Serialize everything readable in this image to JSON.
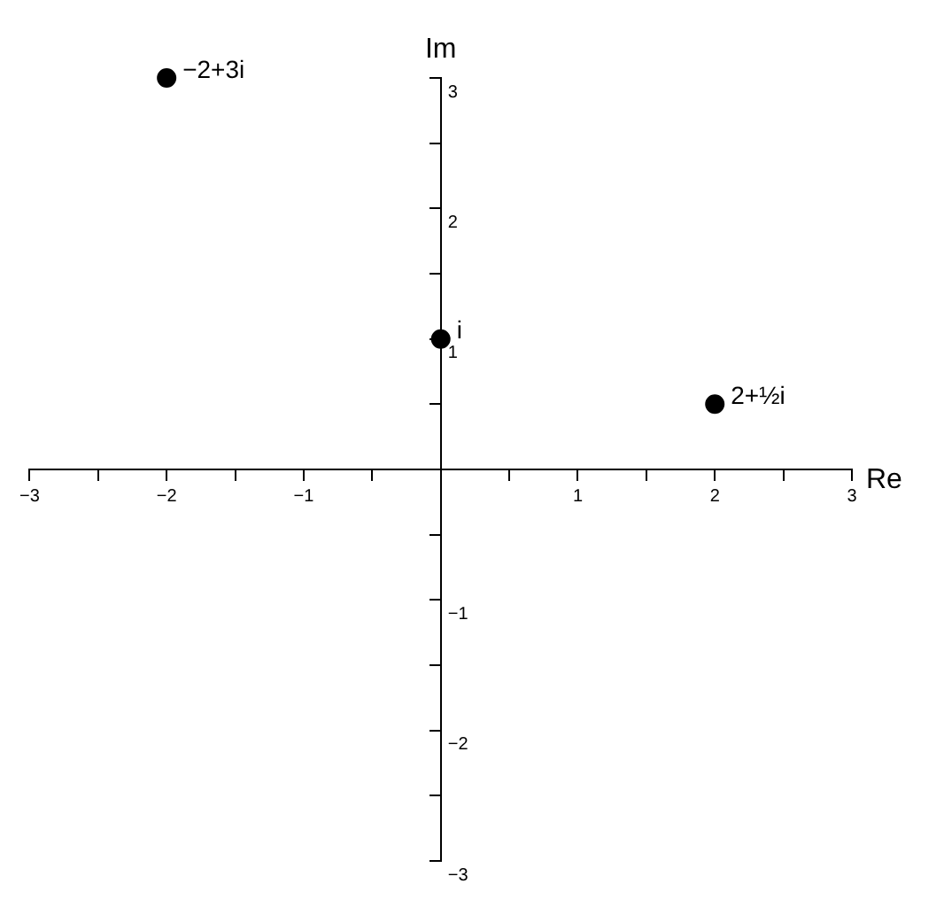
{
  "chart_data": {
    "type": "scatter",
    "xlabel": "Re",
    "ylabel": "Im",
    "x": [
      -2,
      0,
      2
    ],
    "values": [
      3,
      1,
      0.5
    ],
    "color": "#000000",
    "marker": "circle",
    "grid": false,
    "legend": false,
    "xlim": [
      -3,
      3
    ],
    "ylim": [
      -3,
      3
    ],
    "xticks": [
      {
        "value": -3,
        "label": "−3"
      },
      {
        "value": -2.5,
        "label": null
      },
      {
        "value": -2,
        "label": "−2"
      },
      {
        "value": -1.5,
        "label": null
      },
      {
        "value": -1,
        "label": "−1"
      },
      {
        "value": -0.5,
        "label": null
      },
      {
        "value": 0.5,
        "label": null
      },
      1,
      {
        "value": 1.5,
        "label": null
      },
      2,
      {
        "value": 2.5,
        "label": null
      },
      3
    ],
    "yticks": [
      {
        "value": -3,
        "label": "−3"
      },
      {
        "value": -2.5,
        "label": null
      },
      {
        "value": -2,
        "label": "−2"
      },
      {
        "value": -1.5,
        "label": null
      },
      {
        "value": -1,
        "label": "−1"
      },
      {
        "value": -0.5,
        "label": null
      },
      {
        "value": 0.5,
        "label": null
      },
      1,
      {
        "value": 1.5,
        "label": null
      },
      2,
      {
        "value": 2.5,
        "label": null
      },
      3
    ],
    "annotations": [
      {
        "text": "−2+3i",
        "x": -2,
        "y": 3
      },
      {
        "text": "i",
        "x": 0,
        "y": 1
      },
      {
        "text": "2+½i",
        "x": 2,
        "y": 0.5
      }
    ]
  }
}
